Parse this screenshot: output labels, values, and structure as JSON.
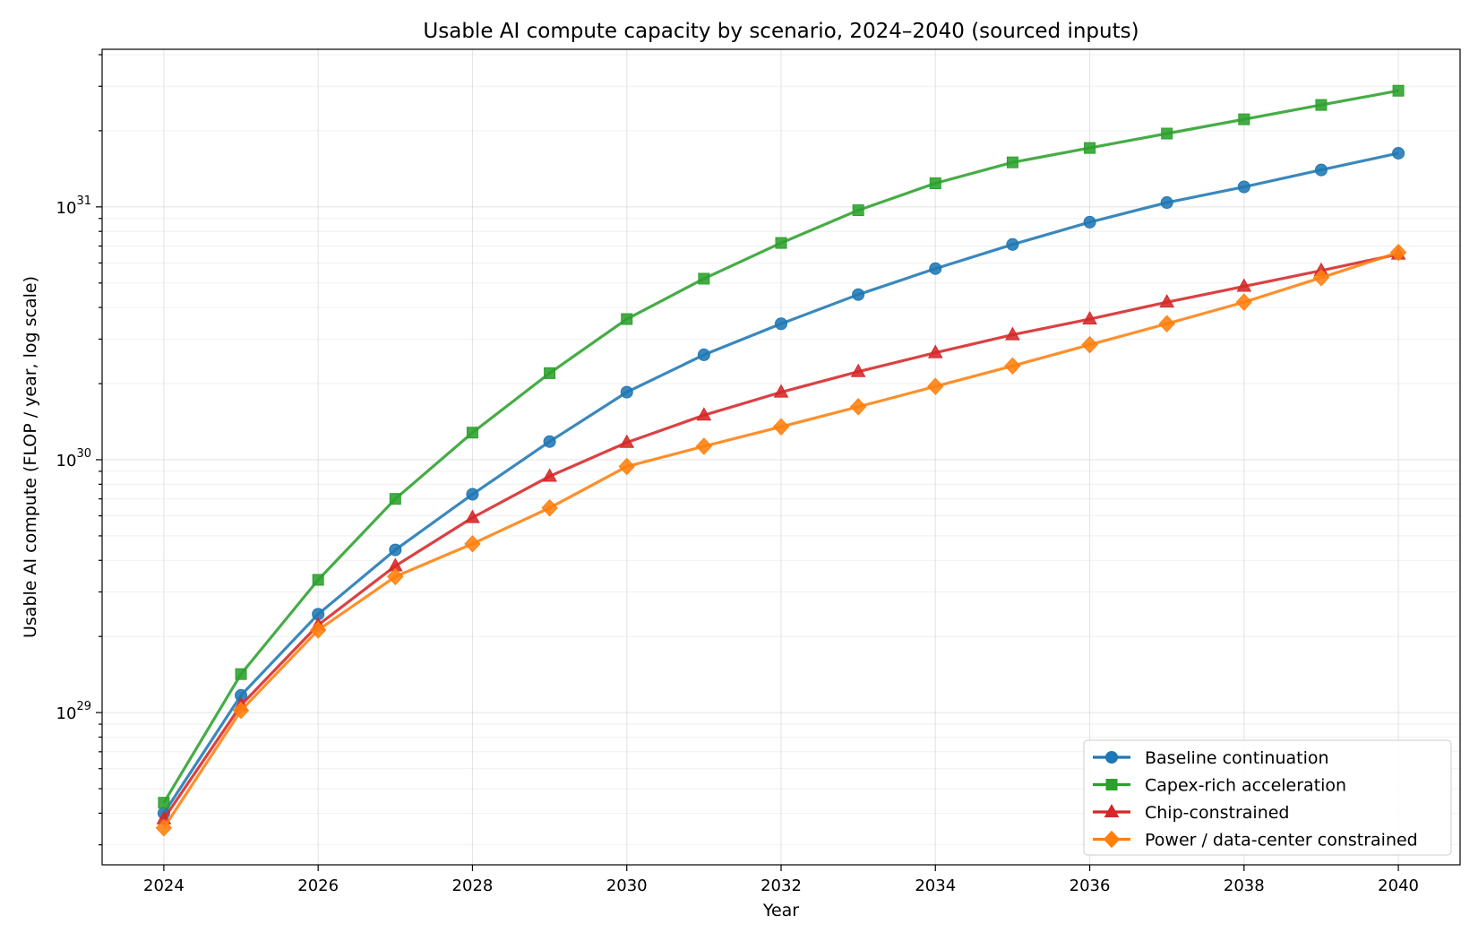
{
  "chart_data": {
    "type": "line",
    "title": "Usable AI compute capacity by scenario, 2024–2040 (sourced inputs)",
    "xlabel": "Year",
    "ylabel": "Usable AI compute (FLOP / year, log scale)",
    "yscale": "log",
    "xlim": [
      2023.2,
      2040.8
    ],
    "ylim": [
      2.5e+28,
      4.2e+31
    ],
    "x_ticks": [
      2024,
      2026,
      2028,
      2030,
      2032,
      2034,
      2036,
      2038,
      2040
    ],
    "y_ticks": [
      {
        "value": 1e+29,
        "base": "10",
        "exp": "29"
      },
      {
        "value": 1e+30,
        "base": "10",
        "exp": "30"
      },
      {
        "value": 1e+31,
        "base": "10",
        "exp": "31"
      }
    ],
    "grid": true,
    "legend_position": "bottom-right",
    "x": [
      2024,
      2025,
      2026,
      2027,
      2028,
      2029,
      2030,
      2031,
      2032,
      2033,
      2034,
      2035,
      2036,
      2037,
      2038,
      2039,
      2040
    ],
    "series": [
      {
        "name": "Baseline continuation",
        "color": "#1f77b4",
        "marker": "circle",
        "values": [
          4e+28,
          1.17e+29,
          2.45e+29,
          4.4e+29,
          7.3e+29,
          1.18e+30,
          1.85e+30,
          2.6e+30,
          3.45e+30,
          4.5e+30,
          5.7e+30,
          7.1e+30,
          8.7e+30,
          1.04e+31,
          1.2e+31,
          1.4e+31,
          1.63e+31
        ]
      },
      {
        "name": "Capex-rich acceleration",
        "color": "#2ca02c",
        "marker": "square",
        "values": [
          4.4e+28,
          1.42e+29,
          3.35e+29,
          7e+29,
          1.28e+30,
          2.2e+30,
          3.6e+30,
          5.2e+30,
          7.2e+30,
          9.7e+30,
          1.24e+31,
          1.5e+31,
          1.71e+31,
          1.95e+31,
          2.22e+31,
          2.53e+31,
          2.88e+31
        ]
      },
      {
        "name": "Chip-constrained",
        "color": "#d62728",
        "marker": "triangle",
        "values": [
          3.8e+28,
          1.07e+29,
          2.22e+29,
          3.8e+29,
          5.9e+29,
          8.6e+29,
          1.17e+30,
          1.5e+30,
          1.85e+30,
          2.23e+30,
          2.65e+30,
          3.12e+30,
          3.6e+30,
          4.2e+30,
          4.85e+30,
          5.6e+30,
          6.5e+30
        ]
      },
      {
        "name": "Power / data-center constrained",
        "color": "#ff7f0e",
        "marker": "diamond",
        "values": [
          3.5e+28,
          1.02e+29,
          2.12e+29,
          3.45e+29,
          4.65e+29,
          6.45e+29,
          9.4e+29,
          1.13e+30,
          1.35e+30,
          1.62e+30,
          1.95e+30,
          2.35e+30,
          2.85e+30,
          3.45e+30,
          4.2e+30,
          5.25e+30,
          6.6e+30
        ]
      }
    ]
  }
}
